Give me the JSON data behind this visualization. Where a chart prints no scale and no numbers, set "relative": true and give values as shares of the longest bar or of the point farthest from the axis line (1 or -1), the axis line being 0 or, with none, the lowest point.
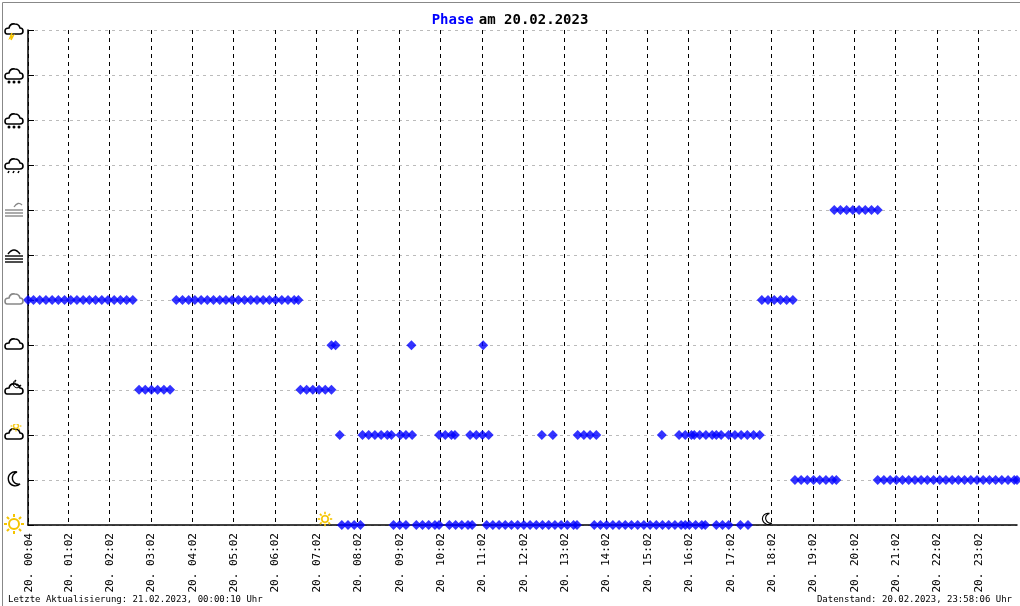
{
  "chart_data": {
    "type": "scatter",
    "title": "Phase am 20.02.2023",
    "relative": true,
    "marker": "diamond",
    "grid": true,
    "xlim": [
      "2023-02-20T00:04",
      "2023-02-20T23:58"
    ],
    "xticks": [
      {
        "value": "2023-02-20T00:04",
        "label": "20. 00:04"
      },
      {
        "value": "2023-02-20T01:02",
        "label": "20. 01:02"
      },
      {
        "value": "2023-02-20T02:02",
        "label": "20. 02:02"
      },
      {
        "value": "2023-02-20T03:02",
        "label": "20. 03:02"
      },
      {
        "value": "2023-02-20T04:02",
        "label": "20. 04:02"
      },
      {
        "value": "2023-02-20T05:02",
        "label": "20. 05:02"
      },
      {
        "value": "2023-02-20T06:02",
        "label": "20. 06:02"
      },
      {
        "value": "2023-02-20T07:02",
        "label": "20. 07:02"
      },
      {
        "value": "2023-02-20T08:02",
        "label": "20. 08:02"
      },
      {
        "value": "2023-02-20T09:02",
        "label": "20. 09:02"
      },
      {
        "value": "2023-02-20T10:02",
        "label": "20. 10:02"
      },
      {
        "value": "2023-02-20T11:02",
        "label": "20. 11:02"
      },
      {
        "value": "2023-02-20T12:02",
        "label": "20. 12:02"
      },
      {
        "value": "2023-02-20T13:02",
        "label": "20. 13:02"
      },
      {
        "value": "2023-02-20T14:02",
        "label": "20. 14:02"
      },
      {
        "value": "2023-02-20T15:02",
        "label": "20. 15:02"
      },
      {
        "value": "2023-02-20T16:02",
        "label": "20. 16:02"
      },
      {
        "value": "2023-02-20T17:02",
        "label": "20. 17:02"
      },
      {
        "value": "2023-02-20T18:02",
        "label": "20. 18:02"
      },
      {
        "value": "2023-02-20T19:02",
        "label": "20. 19:02"
      },
      {
        "value": "2023-02-20T20:02",
        "label": "20. 20:02"
      },
      {
        "value": "2023-02-20T21:02",
        "label": "20. 21:02"
      },
      {
        "value": "2023-02-20T22:02",
        "label": "20. 22:02"
      },
      {
        "value": "2023-02-20T23:02",
        "label": "20. 23:02"
      }
    ],
    "annotations": [
      "Letzte Aktualisierung: 21.02.2023, 00:00:10 Uhr",
      "Datenstand: 20.02.2023, 23:58:06 Uhr"
    ],
    "series": [
      {
        "color": "#0000ff",
        "x": [
          "2023-02-20T00:04",
          "2023-02-20T00:12",
          "2023-02-20T00:21",
          "2023-02-20T00:30",
          "2023-02-20T00:39",
          "2023-02-20T00:48",
          "2023-02-20T00:57",
          "2023-02-20T01:06",
          "2023-02-20T01:15",
          "2023-02-20T01:24",
          "2023-02-20T01:33",
          "2023-02-20T01:42",
          "2023-02-20T01:51",
          "2023-02-20T02:00",
          "2023-02-20T02:09",
          "2023-02-20T02:18",
          "2023-02-20T02:27",
          "2023-02-20T02:36",
          "2023-02-20T02:45",
          "2023-02-20T02:54",
          "2023-02-20T03:03",
          "2023-02-20T03:12",
          "2023-02-20T03:21",
          "2023-02-20T03:30",
          "2023-02-20T03:39",
          "2023-02-20T03:48",
          "2023-02-20T03:57",
          "2023-02-20T04:06",
          "2023-02-20T04:15",
          "2023-02-20T04:24",
          "2023-02-20T04:33",
          "2023-02-20T04:42",
          "2023-02-20T04:51",
          "2023-02-20T05:00",
          "2023-02-20T05:09",
          "2023-02-20T05:18",
          "2023-02-20T05:27",
          "2023-02-20T05:36",
          "2023-02-20T05:45",
          "2023-02-20T05:54",
          "2023-02-20T06:03",
          "2023-02-20T06:12",
          "2023-02-20T06:21",
          "2023-02-20T06:30",
          "2023-02-20T06:36",
          "2023-02-20T06:39",
          "2023-02-20T06:48",
          "2023-02-20T06:57",
          "2023-02-20T07:06",
          "2023-02-20T07:15",
          "2023-02-20T07:24",
          "2023-02-20T07:24",
          "2023-02-20T07:30",
          "2023-02-20T07:36",
          "2023-02-20T07:39",
          "2023-02-20T07:48",
          "2023-02-20T07:57",
          "2023-02-20T08:06",
          "2023-02-20T08:09",
          "2023-02-20T08:18",
          "2023-02-20T08:27",
          "2023-02-20T08:36",
          "2023-02-20T08:45",
          "2023-02-20T08:51",
          "2023-02-20T08:54",
          "2023-02-20T09:03",
          "2023-02-20T09:12",
          "2023-02-20T09:04",
          "2023-02-20T09:12",
          "2023-02-20T09:21",
          "2023-02-20T09:20",
          "2023-02-20T09:27",
          "2023-02-20T09:36",
          "2023-02-20T09:45",
          "2023-02-20T09:54",
          "2023-02-20T10:00",
          "2023-02-20T10:00",
          "2023-02-20T10:09",
          "2023-02-20T10:18",
          "2023-02-20T10:23",
          "2023-02-20T10:15",
          "2023-02-20T10:24",
          "2023-02-20T10:33",
          "2023-02-20T10:42",
          "2023-02-20T10:48",
          "2023-02-20T10:45",
          "2023-02-20T10:54",
          "2023-02-20T11:03",
          "2023-02-20T11:12",
          "2023-02-20T11:04",
          "2023-02-20T11:09",
          "2023-02-20T11:18",
          "2023-02-20T11:27",
          "2023-02-20T11:36",
          "2023-02-20T11:45",
          "2023-02-20T11:54",
          "2023-02-20T12:03",
          "2023-02-20T12:12",
          "2023-02-20T12:21",
          "2023-02-20T12:30",
          "2023-02-20T12:39",
          "2023-02-20T12:48",
          "2023-02-20T12:57",
          "2023-02-20T13:06",
          "2023-02-20T13:15",
          "2023-02-20T13:20",
          "2023-02-20T12:29",
          "2023-02-20T12:45",
          "2023-02-20T13:21",
          "2023-02-20T13:30",
          "2023-02-20T13:39",
          "2023-02-20T13:48",
          "2023-02-20T13:45",
          "2023-02-20T13:54",
          "2023-02-20T14:03",
          "2023-02-20T14:12",
          "2023-02-20T14:21",
          "2023-02-20T14:30",
          "2023-02-20T14:39",
          "2023-02-20T14:48",
          "2023-02-20T14:57",
          "2023-02-20T15:06",
          "2023-02-20T15:15",
          "2023-02-20T15:24",
          "2023-02-20T15:33",
          "2023-02-20T15:42",
          "2023-02-20T15:51",
          "2023-02-20T15:57",
          "2023-02-20T15:23",
          "2023-02-20T15:48",
          "2023-02-20T15:57",
          "2023-02-20T16:06",
          "2023-02-20T16:10",
          "2023-02-20T16:18",
          "2023-02-20T16:27",
          "2023-02-20T16:36",
          "2023-02-20T16:42",
          "2023-02-20T16:49",
          "2023-02-20T17:00",
          "2023-02-20T17:09",
          "2023-02-20T17:18",
          "2023-02-20T17:27",
          "2023-02-20T17:36",
          "2023-02-20T17:45",
          "2023-02-20T16:03",
          "2023-02-20T16:12",
          "2023-02-20T16:21",
          "2023-02-20T16:26",
          "2023-02-20T16:42",
          "2023-02-20T16:51",
          "2023-02-20T17:00",
          "2023-02-20T17:17",
          "2023-02-20T17:28",
          "2023-02-20T17:48",
          "2023-02-20T17:57",
          "2023-02-20T18:06",
          "2023-02-20T18:15",
          "2023-02-20T18:24",
          "2023-02-20T18:33",
          "2023-02-20T18:36",
          "2023-02-20T18:45",
          "2023-02-20T18:54",
          "2023-02-20T19:03",
          "2023-02-20T19:12",
          "2023-02-20T19:21",
          "2023-02-20T19:30",
          "2023-02-20T19:36",
          "2023-02-20T19:33",
          "2023-02-20T19:42",
          "2023-02-20T19:51",
          "2023-02-20T20:00",
          "2023-02-20T20:09",
          "2023-02-20T20:18",
          "2023-02-20T20:27",
          "2023-02-20T20:36",
          "2023-02-20T20:36",
          "2023-02-20T20:45",
          "2023-02-20T20:54",
          "2023-02-20T21:03",
          "2023-02-20T21:12",
          "2023-02-20T21:21",
          "2023-02-20T21:30",
          "2023-02-20T21:39",
          "2023-02-20T21:48",
          "2023-02-20T21:57",
          "2023-02-20T22:06",
          "2023-02-20T22:15",
          "2023-02-20T22:24",
          "2023-02-20T22:33",
          "2023-02-20T22:42",
          "2023-02-20T22:51",
          "2023-02-20T23:00",
          "2023-02-20T23:09",
          "2023-02-20T23:18",
          "2023-02-20T23:27",
          "2023-02-20T23:36",
          "2023-02-20T23:45",
          "2023-02-20T23:54",
          "2023-02-20T23:58"
        ],
        "values": [
          0.714,
          0.714,
          0.714,
          0.714,
          0.714,
          0.714,
          0.714,
          0.714,
          0.714,
          0.714,
          0.714,
          0.714,
          0.714,
          0.714,
          0.714,
          0.714,
          0.714,
          0.714,
          0.429,
          0.429,
          0.429,
          0.429,
          0.429,
          0.429,
          0.714,
          0.714,
          0.714,
          0.714,
          0.714,
          0.714,
          0.714,
          0.714,
          0.714,
          0.714,
          0.714,
          0.714,
          0.714,
          0.714,
          0.714,
          0.714,
          0.714,
          0.714,
          0.714,
          0.714,
          0.714,
          0.429,
          0.429,
          0.429,
          0.429,
          0.429,
          0.429,
          0.571,
          0.571,
          0.286,
          0,
          0,
          0,
          0,
          0.286,
          0.286,
          0.286,
          0.286,
          0.286,
          0.286,
          0,
          0,
          0,
          0.286,
          0.286,
          0.286,
          0.571,
          0,
          0,
          0,
          0,
          0,
          0.286,
          0.286,
          0.286,
          0.286,
          0,
          0,
          0,
          0,
          0,
          0.286,
          0.286,
          0.286,
          0.286,
          0.571,
          0,
          0,
          0,
          0,
          0,
          0,
          0,
          0,
          0,
          0,
          0,
          0,
          0,
          0,
          0,
          0,
          0.286,
          0.286,
          0.286,
          0.286,
          0.286,
          0.286,
          0,
          0,
          0,
          0,
          0,
          0,
          0,
          0,
          0,
          0,
          0,
          0,
          0,
          0,
          0,
          0,
          0.286,
          0.286,
          0.286,
          0.286,
          0.286,
          0.286,
          0.286,
          0.286,
          0.286,
          0.286,
          0.286,
          0.286,
          0.286,
          0.286,
          0.286,
          0.286,
          0,
          0,
          0,
          0,
          0,
          0,
          0,
          0,
          0,
          0.714,
          0.714,
          0.714,
          0.714,
          0.714,
          0.714,
          0.143,
          0.143,
          0.143,
          0.143,
          0.143,
          0.143,
          0.143,
          0.143,
          1,
          1,
          1,
          1,
          1,
          1,
          1,
          1,
          0.143,
          0.143,
          0.143,
          0.143,
          0.143,
          0.143,
          0.143,
          0.143,
          0.143,
          0.143,
          0.143,
          0.143,
          0.143,
          0.143,
          0.143,
          0.143,
          0.143,
          0.143,
          0.143,
          0.143,
          0.143,
          0.143,
          0.143,
          0.143
        ]
      }
    ]
  }
}
